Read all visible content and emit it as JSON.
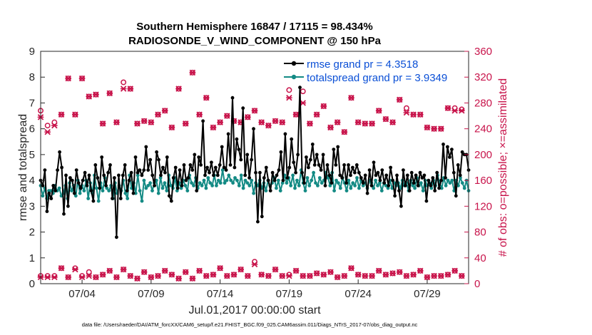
{
  "chart_data": {
    "type": "line",
    "title": "Southern Hemisphere 16847 / 17115 = 98.434%",
    "subtitle": "RADIOSONDE_V_WIND_COMPONENT @ 150 hPa",
    "xlabel": "Jul.01,2017 00:00:00 start",
    "ylabel": "rmse and totalspread",
    "ylabel_right": "# of obs: o=possible; ×=assimilated",
    "footnote": "data file: /Users/raeder/DAI/ATM_forcXX/CAM6_setup/f.e21.FHIST_BGC.f09_025.CAM6assim.011/Diags_NTrS_2017-07/obs_diag_output.nc",
    "xlim": [
      1,
      32
    ],
    "ylim": [
      0,
      9
    ],
    "ylim_right": [
      0,
      360
    ],
    "x_ticks": [
      4,
      9,
      14,
      19,
      24,
      29
    ],
    "x_tick_labels": [
      "07/04",
      "07/09",
      "07/14",
      "07/19",
      "07/24",
      "07/29"
    ],
    "y_ticks": [
      0,
      1,
      2,
      3,
      4,
      5,
      6,
      7,
      8,
      9
    ],
    "y_tick_labels": [
      "0",
      "1",
      "2",
      "3",
      "4",
      "5",
      "6",
      "7",
      "8",
      "9"
    ],
    "y_ticks_right": [
      0,
      40,
      80,
      120,
      160,
      200,
      240,
      280,
      320,
      360
    ],
    "y_tick_labels_right": [
      "0",
      "40",
      "80",
      "120",
      "160",
      "200",
      "240",
      "280",
      "320",
      "360"
    ],
    "legend_position": "top-right",
    "series": [
      {
        "name": "rmse grand pr = 4.3518",
        "color": "#000000",
        "marker": "filled-circle",
        "values": [
          4.0,
          3.8,
          4.4,
          2.8,
          3.5,
          3.3,
          3.8,
          3.6,
          4.4,
          5.1,
          4.5,
          2.7,
          4.2,
          3.0,
          4.1,
          4.0,
          3.5,
          4.4,
          3.9,
          3.7,
          4.0,
          4.3,
          3.8,
          4.2,
          3.6,
          3.2,
          4.6,
          4.1,
          3.7,
          4.9,
          4.2,
          3.8,
          4.3,
          4.6,
          3.3,
          4.1,
          1.8,
          4.2,
          3.3,
          4.2,
          4.6,
          3.6,
          4.0,
          4.3,
          3.5,
          4.9,
          4.3,
          4.4,
          4.2,
          4.4,
          5.3,
          4.4,
          4.8,
          4.2,
          3.8,
          5.1,
          4.8,
          4.2,
          4.5,
          4.3,
          4.9,
          3.4,
          3.2,
          4.1,
          4.5,
          3.7,
          4.4,
          3.8,
          4.6,
          4.0,
          4.1,
          4.6,
          4.4,
          5.0,
          3.6,
          4.9,
          4.6,
          6.3,
          4.2,
          4.5,
          4.3,
          4.7,
          4.2,
          4.5,
          4.2,
          4.6,
          5.3,
          4.5,
          4.4,
          5.8,
          4.6,
          7.2,
          4.5,
          5.6,
          5.2,
          4.8,
          6.8,
          4.2,
          5.0,
          4.1,
          4.8,
          6.0,
          4.3,
          2.4,
          4.3,
          2.6,
          4.1,
          4.5,
          4.0,
          3.6,
          4.3,
          4.0,
          4.2,
          4.4,
          5.1,
          4.0,
          5.8,
          4.1,
          4.5,
          5.6,
          4.7,
          4.3,
          5.0,
          7.6,
          4.3,
          3.9,
          4.9,
          4.5,
          4.8,
          5.4,
          4.6,
          5.0,
          4.6,
          4.4,
          5.0,
          3.8,
          4.6,
          4.2,
          3.9,
          5.2,
          4.6,
          5.3,
          4.2,
          4.1,
          4.6,
          3.9,
          4.6,
          4.2,
          4.5,
          4.3,
          4.6,
          4.3,
          4.1,
          3.9,
          4.2,
          3.5,
          4.4,
          3.8,
          4.7,
          4.2,
          4.3,
          4.0,
          4.4,
          3.9,
          4.2,
          3.8,
          4.5,
          4.0,
          3.4,
          4.2,
          3.6,
          3.0,
          4.4,
          3.8,
          4.2,
          3.6,
          4.3,
          3.9,
          4.2,
          3.8,
          4.3,
          4.1,
          4.2,
          3.2,
          4.0,
          3.8,
          4.1,
          3.6,
          4.3,
          3.7,
          4.0,
          5.4,
          4.1,
          5.3,
          4.9,
          5.2,
          4.3,
          3.4,
          4.6,
          4.2,
          5.1,
          5.0,
          5.0,
          4.4
        ]
      },
      {
        "name": "totalspread grand pr = 3.9349",
        "color": "#138a84",
        "marker": "filled-circle",
        "values": [
          3.8,
          3.4,
          3.7,
          3.3,
          3.6,
          3.6,
          3.5,
          3.8,
          3.6,
          3.7,
          3.4,
          3.5,
          3.8,
          3.3,
          3.9,
          3.6,
          3.8,
          3.4,
          4.0,
          3.5,
          3.8,
          3.6,
          4.0,
          3.3,
          3.9,
          3.5,
          4.2,
          3.7,
          3.2,
          3.9,
          3.6,
          4.1,
          3.7,
          3.6,
          3.8,
          3.3,
          3.9,
          3.5,
          3.8,
          3.6,
          4.0,
          3.5,
          3.3,
          4.2,
          3.7,
          3.9,
          3.5,
          4.2,
          3.6,
          3.2,
          4.0,
          3.7,
          3.8,
          3.9,
          3.6,
          3.9,
          4.0,
          3.5,
          4.1,
          3.7,
          3.9,
          3.6,
          4.2,
          3.8,
          3.7,
          4.1,
          3.6,
          3.9,
          3.7,
          4.0,
          3.8,
          3.6,
          4.2,
          3.9,
          3.8,
          4.1,
          3.7,
          3.9,
          3.8,
          4.0,
          3.7,
          4.1,
          3.9,
          3.8,
          4.2,
          3.8,
          4.0,
          3.9,
          4.4,
          3.9,
          4.0,
          4.2,
          4.0,
          3.9,
          4.1,
          4.0,
          3.8,
          4.2,
          3.7,
          4.0,
          3.9,
          3.8,
          4.0,
          3.5,
          3.9,
          3.8,
          4.0,
          3.7,
          3.9,
          3.6,
          4.0,
          3.8,
          3.9,
          4.1,
          3.7,
          4.0,
          3.6,
          3.9,
          4.2,
          3.9,
          4.1,
          3.8,
          4.2,
          3.7,
          4.0,
          3.8,
          4.4,
          3.9,
          3.6,
          4.1,
          3.8,
          4.0,
          4.3,
          3.9,
          3.8,
          4.1,
          3.9,
          4.0,
          4.3,
          4.1,
          3.8,
          4.3,
          3.6,
          4.0,
          3.9,
          3.7,
          4.1,
          3.9,
          3.6,
          4.0,
          3.7,
          3.9,
          3.8,
          4.1,
          3.7,
          4.0,
          3.8,
          3.9,
          3.7,
          4.0,
          3.9,
          3.7,
          4.0,
          3.8,
          3.9,
          3.6,
          3.9,
          3.8,
          3.7,
          4.0,
          3.7,
          3.9,
          3.8,
          3.9,
          3.7,
          4.0,
          3.8,
          3.9,
          3.6,
          4.0,
          3.8,
          3.7,
          4.1,
          3.8,
          3.9,
          3.6,
          4.0,
          3.8,
          3.9,
          3.7,
          4.0,
          3.8,
          4.2,
          3.9,
          3.7,
          4.1,
          3.8,
          4.0,
          3.9,
          4.0,
          3.6,
          4.0,
          3.8,
          4.1,
          3.9,
          3.7,
          4.0,
          3.6
        ]
      },
      {
        "name": "obs possible",
        "axis": "right",
        "color": "#c8144b",
        "marker": "open-circle",
        "x": [
          1.0,
          1.5,
          2.0,
          2.5,
          3.0,
          3.5,
          4.0,
          4.5,
          5.0,
          5.5,
          6.0,
          6.5,
          7.0,
          7.5,
          8.0,
          8.5,
          9.0,
          9.5,
          10.0,
          10.5,
          11.0,
          11.5,
          12.0,
          12.5,
          13.0,
          13.5,
          14.0,
          14.5,
          15.0,
          15.5,
          16.0,
          16.5,
          17.0,
          17.5,
          18.0,
          18.5,
          19.0,
          19.5,
          20.0,
          20.5,
          21.0,
          21.5,
          22.0,
          22.5,
          23.0,
          23.5,
          24.0,
          24.5,
          25.0,
          25.5,
          26.0,
          26.5,
          27.0,
          27.5,
          28.0,
          28.5,
          29.0,
          29.5,
          30.0,
          30.5,
          31.0,
          31.5
        ],
        "values": [
          268,
          245,
          250,
          262,
          318,
          262,
          318,
          290,
          293,
          248,
          295,
          250,
          312,
          302,
          248,
          252,
          250,
          262,
          268,
          242,
          302,
          248,
          327,
          262,
          288,
          242,
          250,
          260,
          252,
          250,
          258,
          268,
          250,
          245,
          252,
          250,
          300,
          262,
          298,
          248,
          262,
          275,
          242,
          250,
          235,
          288,
          250,
          248,
          248,
          268,
          255,
          250,
          285,
          272,
          262,
          262,
          242,
          240,
          240,
          272,
          272,
          270
        ]
      },
      {
        "name": "obs assimilated",
        "axis": "right",
        "color": "#c8144b",
        "marker": "x",
        "x": [
          1.0,
          1.5,
          2.0,
          2.5,
          3.0,
          3.5,
          4.0,
          4.5,
          5.0,
          5.5,
          6.0,
          6.5,
          7.0,
          7.5,
          8.0,
          8.5,
          9.0,
          9.5,
          10.0,
          10.5,
          11.0,
          11.5,
          12.0,
          12.5,
          13.0,
          13.5,
          14.0,
          14.5,
          15.0,
          15.5,
          16.0,
          16.5,
          17.0,
          17.5,
          18.0,
          18.5,
          19.0,
          19.5,
          20.0,
          20.5,
          21.0,
          21.5,
          22.0,
          22.5,
          23.0,
          23.5,
          24.0,
          24.5,
          25.0,
          25.5,
          26.0,
          26.5,
          27.0,
          27.5,
          28.0,
          28.5,
          29.0,
          29.5,
          30.0,
          30.5,
          31.0,
          31.5
        ],
        "values": [
          258,
          235,
          245,
          262,
          318,
          262,
          318,
          290,
          293,
          248,
          295,
          250,
          302,
          302,
          248,
          252,
          250,
          262,
          268,
          242,
          302,
          248,
          327,
          262,
          288,
          242,
          250,
          260,
          252,
          250,
          258,
          268,
          250,
          245,
          252,
          250,
          288,
          262,
          280,
          248,
          262,
          275,
          242,
          250,
          235,
          288,
          250,
          248,
          248,
          268,
          255,
          250,
          285,
          265,
          262,
          262,
          242,
          240,
          240,
          272,
          268,
          268
        ]
      },
      {
        "name": "obs possible low",
        "axis": "right",
        "color": "#c8144b",
        "marker": "open-circle",
        "x": [
          1.0,
          1.5,
          2.0,
          2.5,
          3.0,
          3.5,
          4.0,
          4.5,
          5.0,
          5.5,
          6.0,
          6.5,
          7.0,
          7.5,
          8.0,
          8.5,
          9.0,
          9.5,
          10.0,
          10.5,
          11.0,
          11.5,
          12.0,
          12.5,
          13.0,
          13.5,
          14.0,
          14.5,
          15.0,
          15.5,
          16.0,
          16.5,
          17.0,
          17.5,
          18.0,
          18.5,
          19.0,
          19.5,
          20.0,
          20.5,
          21.0,
          21.5,
          22.0,
          22.5,
          23.0,
          23.5,
          24.0,
          24.5,
          25.0,
          25.5,
          26.0,
          26.5,
          27.0,
          27.5,
          28.0,
          28.5,
          29.0,
          29.5,
          30.0,
          30.5,
          31.0,
          31.5
        ],
        "values": [
          12,
          12,
          12,
          24,
          10,
          24,
          12,
          18,
          10,
          14,
          20,
          10,
          22,
          12,
          8,
          18,
          10,
          12,
          20,
          14,
          8,
          18,
          8,
          20,
          12,
          14,
          24,
          12,
          14,
          22,
          12,
          34,
          14,
          12,
          22,
          12,
          14,
          20,
          12,
          12,
          16,
          14,
          18,
          10,
          12,
          24,
          14,
          12,
          12,
          20,
          14,
          16,
          18,
          12,
          14,
          20,
          10,
          12,
          12,
          14,
          20,
          12
        ]
      },
      {
        "name": "obs assimilated low",
        "axis": "right",
        "color": "#c8144b",
        "marker": "x",
        "x": [
          1.0,
          1.5,
          2.0,
          2.5,
          3.0,
          3.5,
          4.0,
          4.5,
          5.0,
          5.5,
          6.0,
          6.5,
          7.0,
          7.5,
          8.0,
          8.5,
          9.0,
          9.5,
          10.0,
          10.5,
          11.0,
          11.5,
          12.0,
          12.5,
          13.0,
          13.5,
          14.0,
          14.5,
          15.0,
          15.5,
          16.0,
          16.5,
          17.0,
          17.5,
          18.0,
          18.5,
          19.0,
          19.5,
          20.0,
          20.5,
          21.0,
          21.5,
          22.0,
          22.5,
          23.0,
          23.5,
          24.0,
          24.5,
          25.0,
          25.5,
          26.0,
          26.5,
          27.0,
          27.5,
          28.0,
          28.5,
          29.0,
          29.5,
          30.0,
          30.5,
          31.0,
          31.5
        ],
        "values": [
          10,
          10,
          10,
          24,
          10,
          22,
          10,
          12,
          10,
          14,
          20,
          10,
          22,
          12,
          8,
          18,
          10,
          12,
          20,
          14,
          8,
          18,
          8,
          20,
          12,
          14,
          24,
          12,
          14,
          22,
          12,
          30,
          14,
          12,
          22,
          12,
          12,
          20,
          12,
          12,
          16,
          14,
          18,
          10,
          12,
          24,
          14,
          12,
          12,
          20,
          14,
          16,
          18,
          12,
          14,
          20,
          10,
          12,
          12,
          14,
          20,
          12
        ]
      }
    ]
  }
}
